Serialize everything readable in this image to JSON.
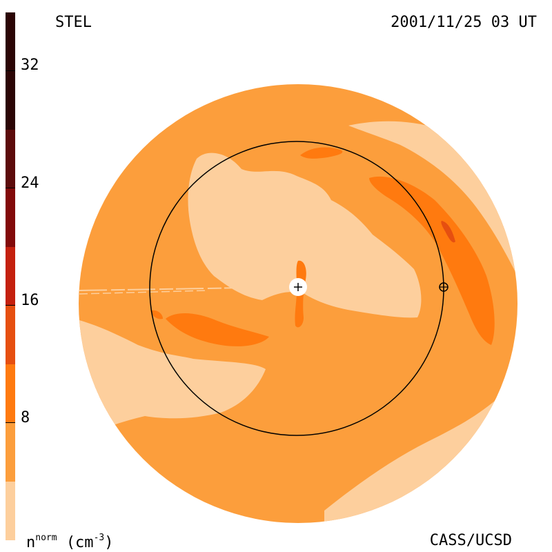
{
  "header": {
    "instrument": "STEL",
    "timestamp": "2001/11/25 03 UT"
  },
  "footer": {
    "credit": "CASS/UCSD"
  },
  "colorbar": {
    "unit_base": "n",
    "unit_sup": "norm",
    "unit_text": "(cm",
    "unit_exp": "-3",
    "unit_close": ")",
    "ticks": [
      "32",
      "24",
      "16",
      "8"
    ],
    "bands": [
      "#2b0505",
      "#5c0b0b",
      "#960d0d",
      "#c4200e",
      "#e64f10",
      "#ff7a0f",
      "#fc9e3c",
      "#fdcf9d"
    ]
  },
  "colors": {
    "background_disk": "#fc9e3c",
    "low_density": "#fdcf9d",
    "medium_density": "#ff7a0f",
    "high_density": "#e64f10",
    "orbit_line": "#000000"
  },
  "markers": {
    "sun": "plus-icon",
    "earth": "earth-symbol-icon"
  }
}
